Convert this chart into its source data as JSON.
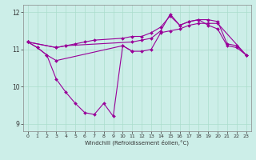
{
  "background_color": "#cceee8",
  "grid_color": "#aaddcc",
  "line_color": "#990099",
  "x_hours": [
    0,
    1,
    2,
    3,
    4,
    5,
    6,
    7,
    8,
    9,
    10,
    11,
    12,
    13,
    14,
    15,
    16,
    17,
    18,
    19,
    20,
    21,
    22,
    23
  ],
  "series1_x": [
    0,
    1,
    2,
    3,
    4,
    5,
    6,
    7,
    8,
    9,
    10,
    11
  ],
  "series1_y": [
    11.2,
    11.05,
    10.85,
    10.2,
    9.85,
    9.55,
    9.3,
    9.25,
    9.55,
    9.2,
    11.1,
    10.95
  ],
  "series2_x": [
    0,
    1,
    2,
    3,
    10,
    11,
    12,
    13,
    14,
    15,
    16,
    17,
    18,
    19,
    20,
    23
  ],
  "series2_y": [
    11.2,
    11.05,
    10.85,
    10.7,
    11.1,
    10.95,
    10.95,
    11.0,
    11.45,
    11.5,
    11.55,
    11.65,
    11.7,
    11.7,
    11.7,
    10.85
  ],
  "series3_x": [
    0,
    3,
    4,
    5,
    6,
    7,
    10,
    11,
    12,
    13,
    14,
    15,
    16,
    17,
    18,
    19,
    20,
    21,
    22,
    23
  ],
  "series3_y": [
    11.2,
    11.05,
    11.1,
    11.15,
    11.2,
    11.25,
    11.3,
    11.35,
    11.35,
    11.45,
    11.6,
    11.9,
    11.65,
    11.75,
    11.8,
    11.8,
    11.75,
    11.15,
    11.1,
    10.85
  ],
  "series4_x": [
    0,
    3,
    4,
    11,
    12,
    13,
    14,
    15,
    16,
    17,
    18,
    19,
    20,
    21,
    22,
    23
  ],
  "series4_y": [
    11.2,
    11.05,
    11.1,
    11.2,
    11.25,
    11.3,
    11.5,
    11.95,
    11.65,
    11.75,
    11.8,
    11.65,
    11.55,
    11.1,
    11.05,
    10.85
  ],
  "ylim": [
    8.8,
    12.2
  ],
  "xlim": [
    -0.5,
    23.5
  ],
  "yticks": [
    9,
    10,
    11,
    12
  ],
  "xticks": [
    0,
    1,
    2,
    3,
    4,
    5,
    6,
    7,
    8,
    9,
    10,
    11,
    12,
    13,
    14,
    15,
    16,
    17,
    18,
    19,
    20,
    21,
    22,
    23
  ],
  "xlabel": "Windchill (Refroidissement éolien,°C)",
  "marker": "D",
  "markersize": 2.0,
  "linewidth": 0.8
}
